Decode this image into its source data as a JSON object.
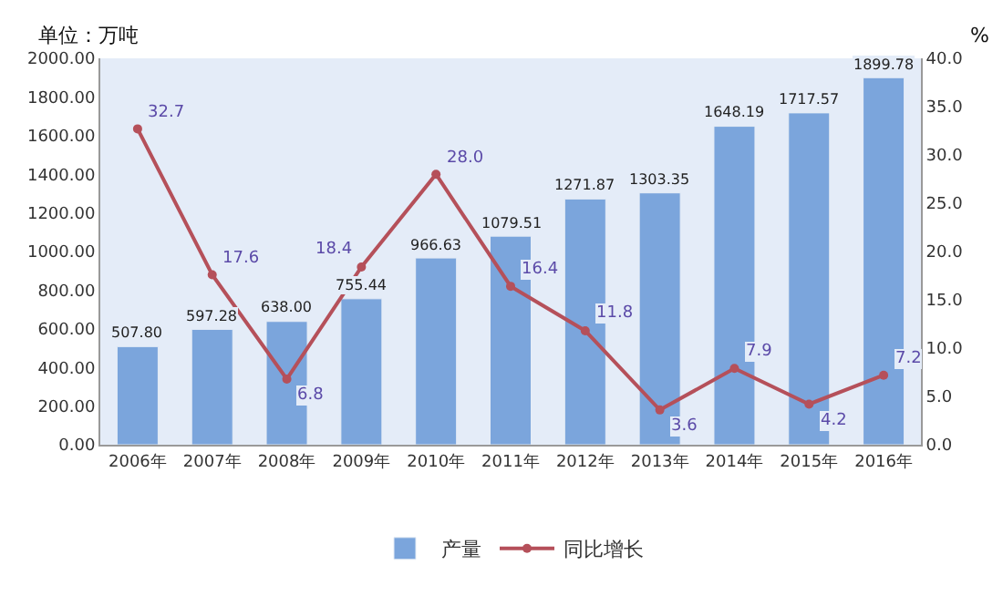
{
  "chart_data": {
    "type": "bar",
    "ylabel": "单位：万吨",
    "y2label": "%",
    "categories": [
      "2006年",
      "2007年",
      "2008年",
      "2009年",
      "2010年",
      "2011年",
      "2012年",
      "2013年",
      "2014年",
      "2015年",
      "2016年"
    ],
    "series": [
      {
        "name": "产量",
        "color": "#7ba5dc",
        "values": [
          507.8,
          597.28,
          638.0,
          755.44,
          966.63,
          1079.51,
          1271.87,
          1303.35,
          1648.19,
          1717.57,
          1899.78
        ],
        "value_labels": [
          "507.80",
          "597.28",
          "638.00",
          "755.44",
          "966.63",
          "1079.51",
          "1271.87",
          "1303.35",
          "1648.19",
          "1717.57",
          "1899.78"
        ]
      },
      {
        "name": "同比增长",
        "type": "line",
        "axis": "y2",
        "color": "#b5505a",
        "marker": "circle",
        "values": [
          32.7,
          17.6,
          6.8,
          18.4,
          28.0,
          16.4,
          11.8,
          3.6,
          7.9,
          4.2,
          7.2
        ],
        "value_labels": [
          "32.7",
          "17.6",
          "6.8",
          "18.4",
          "28.0",
          "16.4",
          "11.8",
          "3.6",
          "7.9",
          "4.2",
          "7.2"
        ]
      }
    ],
    "ylim": [
      0,
      2000
    ],
    "yticks": [
      {
        "value": 0,
        "label": "0.00"
      },
      {
        "value": 200,
        "label": "200.00"
      },
      {
        "value": 400,
        "label": "400.00"
      },
      {
        "value": 600,
        "label": "600.00"
      },
      {
        "value": 800,
        "label": "800.00"
      },
      {
        "value": 1000,
        "label": "1000.00"
      },
      {
        "value": 1200,
        "label": "1200.00"
      },
      {
        "value": 1400,
        "label": "1400.00"
      },
      {
        "value": 1600,
        "label": "1600.00"
      },
      {
        "value": 1800,
        "label": "1800.00"
      },
      {
        "value": 2000,
        "label": "2000.00"
      }
    ],
    "y2lim": [
      0,
      40
    ],
    "y2ticks": [
      {
        "value": 0,
        "label": "0.0"
      },
      {
        "value": 5,
        "label": "5.0"
      },
      {
        "value": 10,
        "label": "10.0"
      },
      {
        "value": 15,
        "label": "15.0"
      },
      {
        "value": 20,
        "label": "20.0"
      },
      {
        "value": 25,
        "label": "25.0"
      },
      {
        "value": 30,
        "label": "30.0"
      },
      {
        "value": 35,
        "label": "35.0"
      },
      {
        "value": 40,
        "label": "40.0"
      }
    ],
    "legend": "bottom"
  }
}
